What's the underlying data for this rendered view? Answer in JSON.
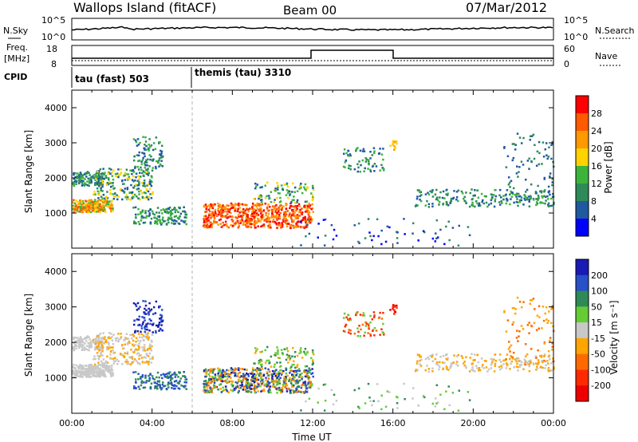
{
  "header": {
    "station": "Wallops Island (fitACF)",
    "beam": "Beam 00",
    "date": "07/Mar/2012"
  },
  "top_panels": {
    "nsky_label": "N.Sky",
    "nsky_ticks": [
      "10^5",
      "10^0"
    ],
    "nsearch_label": "N.Search",
    "nsearch_ticks": [
      "10^5",
      "10^0"
    ],
    "freq_label_1": "Freq.",
    "freq_label_2": "[MHz]",
    "freq_ticks": [
      "18",
      "8"
    ],
    "nave_label": "Nave",
    "nave_ticks": [
      "60",
      "0"
    ],
    "cpid_label": "CPID",
    "cpid_segments": [
      "tau (fast) 503",
      "themis (tau) 3310"
    ]
  },
  "chart_data": [
    {
      "type": "heatmap",
      "name": "power-panel",
      "ylabel": "Slant Range [km]",
      "xlabel": "",
      "y_ticks": [
        "4000",
        "3000",
        "2000",
        "1000"
      ],
      "ylim": [
        0,
        4500
      ],
      "xlim": [
        0,
        24
      ],
      "colorbar": {
        "label": "Power [dB]",
        "ticks": [
          "28",
          "24",
          "20",
          "16",
          "12",
          "8",
          "4"
        ],
        "colors": [
          "#ff0000",
          "#ff5a00",
          "#ff9900",
          "#ffd200",
          "#3cb43c",
          "#2e8b57",
          "#1f5aa0",
          "#0000ff"
        ]
      }
    },
    {
      "type": "heatmap",
      "name": "velocity-panel",
      "ylabel": "Slant Range [km]",
      "xlabel": "Time UT",
      "y_ticks": [
        "4000",
        "3000",
        "2000",
        "1000"
      ],
      "x_ticks": [
        "00:00",
        "04:00",
        "08:00",
        "12:00",
        "16:00",
        "20:00",
        "00:00"
      ],
      "ylim": [
        0,
        4500
      ],
      "xlim": [
        0,
        24
      ],
      "colorbar": {
        "label": "Velocity [m s⁻¹]",
        "ticks": [
          "200",
          "100",
          "50",
          "15",
          "-15",
          "-50",
          "-100",
          "-200"
        ],
        "colors": [
          "#1a1ab4",
          "#2850c8",
          "#2e8b57",
          "#66cc33",
          "#c8c8c8",
          "#ffa500",
          "#ff6a00",
          "#ff2a00",
          "#ee0000"
        ]
      }
    }
  ],
  "colors": {
    "ground_scatter": "#b4b4b4",
    "dashed_marker": "#b4b4b4"
  }
}
